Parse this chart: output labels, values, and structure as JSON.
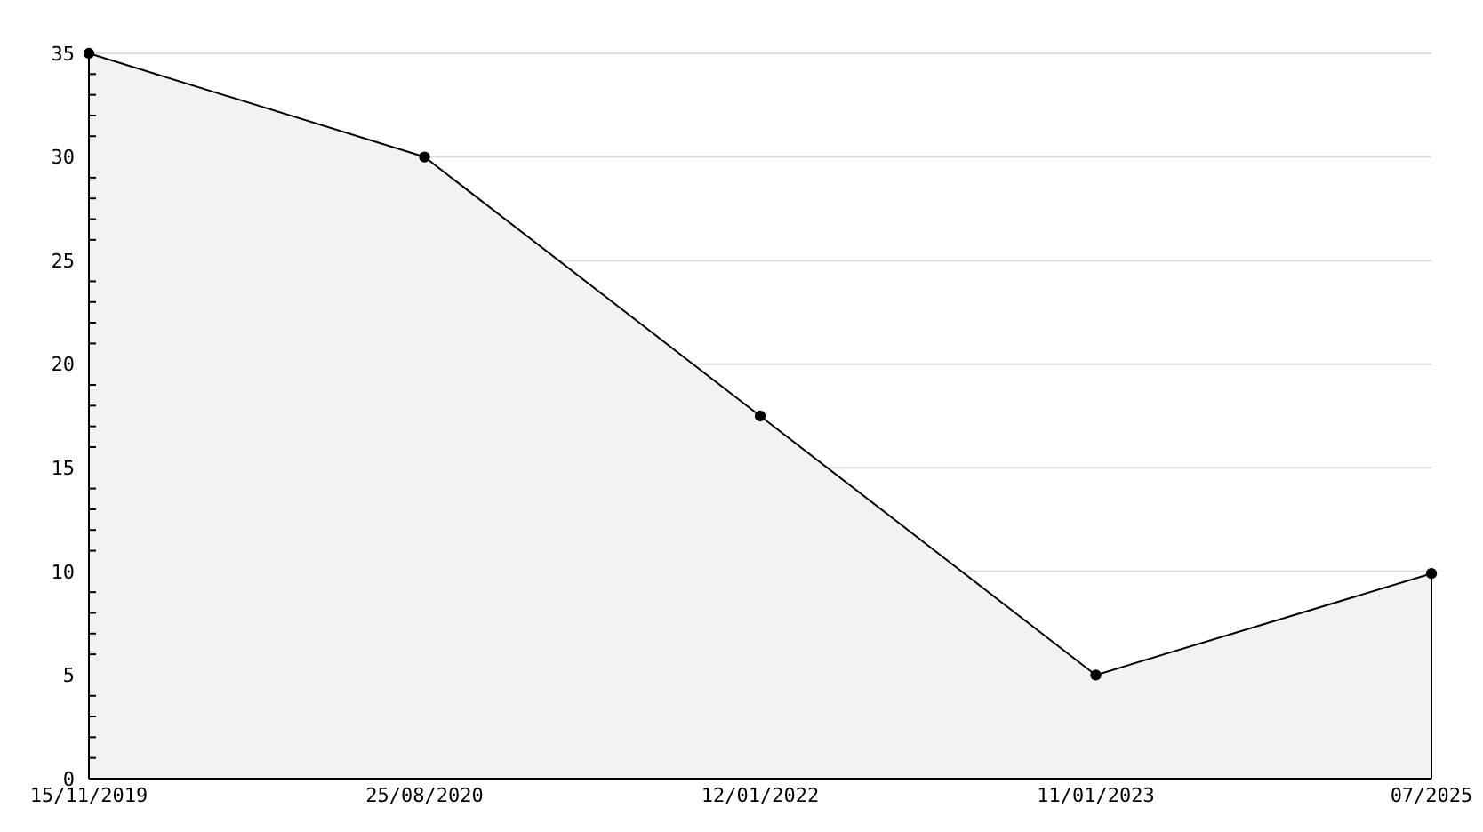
{
  "chart_data": {
    "type": "area",
    "categories": [
      "15/11/2019",
      "25/08/2020",
      "12/01/2022",
      "11/01/2023",
      "07/2025"
    ],
    "series": [
      {
        "color": "#000000",
        "values": [
          35,
          30,
          17.5,
          5,
          9.9
        ]
      }
    ],
    "ylim": [
      0,
      35
    ],
    "yticks": [
      0,
      {
        "value": 1,
        "label": null
      },
      {
        "value": 2,
        "label": null
      },
      {
        "value": 3,
        "label": null
      },
      {
        "value": 4,
        "label": null
      },
      5,
      {
        "value": 6,
        "label": null
      },
      {
        "value": 7,
        "label": null
      },
      {
        "value": 8,
        "label": null
      },
      {
        "value": 9,
        "label": null
      },
      10,
      {
        "value": 11,
        "label": null
      },
      {
        "value": 12,
        "label": null
      },
      {
        "value": 13,
        "label": null
      },
      {
        "value": 14,
        "label": null
      },
      15,
      {
        "value": 16,
        "label": null
      },
      {
        "value": 17,
        "label": null
      },
      {
        "value": 18,
        "label": null
      },
      {
        "value": 19,
        "label": null
      },
      20,
      {
        "value": 21,
        "label": null
      },
      {
        "value": 22,
        "label": null
      },
      {
        "value": 23,
        "label": null
      },
      {
        "value": 24,
        "label": null
      },
      25,
      {
        "value": 26,
        "label": null
      },
      {
        "value": 27,
        "label": null
      },
      {
        "value": 28,
        "label": null
      },
      {
        "value": 29,
        "label": null
      },
      30,
      {
        "value": 31,
        "label": null
      },
      {
        "value": 32,
        "label": null
      },
      {
        "value": 33,
        "label": null
      },
      {
        "value": 34,
        "label": null
      },
      35
    ],
    "grid": "y",
    "marker": "circle"
  }
}
